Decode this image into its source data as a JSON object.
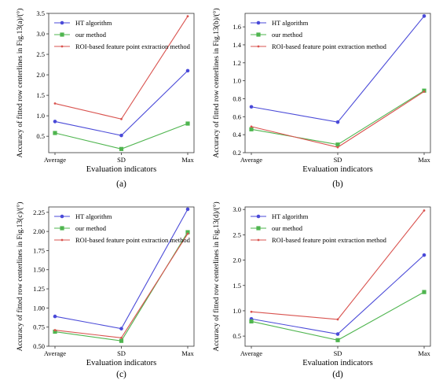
{
  "figure": {
    "panels": [
      {
        "caption": "(a)",
        "ylabel": "Accuracy of fitted row centerlines in Fig.13(a)/(°)",
        "xlabel": "Evaluation indicators"
      },
      {
        "caption": "(b)",
        "ylabel": "Accuracy of fitted row centerlines in Fig.13(b)/(°)",
        "xlabel": "Evaluation indicators"
      },
      {
        "caption": "(c)",
        "ylabel": "Accuracy of fitted row centerlines in Fig.13(c)/(°)",
        "xlabel": "Evaluation indicators"
      },
      {
        "caption": "(d)",
        "ylabel": "Accuracy of fitted row centerlines in Fig.13(d)/(°)",
        "xlabel": "Evaluation indicators"
      }
    ]
  },
  "colors": {
    "ht": "#4a4ad8",
    "ours": "#4fb54f",
    "roi": "#d9534f",
    "axis": "#333333",
    "grid": "#dddddd"
  },
  "chart_data": [
    {
      "type": "line",
      "categories": [
        "Average",
        "SD",
        "Max"
      ],
      "ylim": [
        0.1,
        3.5
      ],
      "yticks": [
        0.5,
        1.0,
        1.5,
        2.0,
        2.5,
        3.0,
        3.5
      ],
      "ytick_labels": [
        "0.5",
        "1.0",
        "1.5",
        "2.0",
        "2.5",
        "3.0",
        "3.5"
      ],
      "grid": false,
      "legend": "top-left",
      "series": [
        {
          "name": "HT algorithm",
          "values": [
            0.86,
            0.52,
            2.1
          ]
        },
        {
          "name": "our method",
          "values": [
            0.58,
            0.19,
            0.81
          ]
        },
        {
          "name": "ROI-based feature point extraction method",
          "values": [
            1.3,
            0.92,
            3.43
          ]
        }
      ]
    },
    {
      "type": "line",
      "categories": [
        "Average",
        "SD",
        "Max"
      ],
      "ylim": [
        0.2,
        1.75
      ],
      "yticks": [
        0.2,
        0.4,
        0.6,
        0.8,
        1.0,
        1.2,
        1.4,
        1.6
      ],
      "ytick_labels": [
        "0.2",
        "0.4",
        "0.6",
        "0.8",
        "1.0",
        "1.2",
        "1.4",
        "1.6"
      ],
      "grid": false,
      "legend": "top-left",
      "series": [
        {
          "name": "HT algorithm",
          "values": [
            0.71,
            0.54,
            1.72
          ]
        },
        {
          "name": "our method",
          "values": [
            0.46,
            0.29,
            0.89
          ]
        },
        {
          "name": "ROI-based feature point extraction method",
          "values": [
            0.49,
            0.26,
            0.88
          ]
        }
      ]
    },
    {
      "type": "line",
      "categories": [
        "Average",
        "SD",
        "Max"
      ],
      "ylim": [
        0.5,
        2.32
      ],
      "yticks": [
        0.5,
        0.75,
        1.0,
        1.25,
        1.5,
        1.75,
        2.0,
        2.25
      ],
      "ytick_labels": [
        "0.50",
        "0.75",
        "1.00",
        "1.25",
        "1.50",
        "1.75",
        "2.00",
        "2.25"
      ],
      "grid": false,
      "legend": "top-left",
      "series": [
        {
          "name": "HT algorithm",
          "values": [
            0.89,
            0.73,
            2.29
          ]
        },
        {
          "name": "our method",
          "values": [
            0.69,
            0.57,
            1.99
          ]
        },
        {
          "name": "ROI-based feature point extraction method",
          "values": [
            0.71,
            0.61,
            1.97
          ]
        }
      ]
    },
    {
      "type": "line",
      "categories": [
        "Average",
        "SD",
        "Max"
      ],
      "ylim": [
        0.3,
        3.05
      ],
      "yticks": [
        0.5,
        1.0,
        1.5,
        2.0,
        2.5,
        3.0
      ],
      "ytick_labels": [
        "0.5",
        "1.0",
        "1.5",
        "2.0",
        "2.5",
        "3.0"
      ],
      "grid": false,
      "legend": "top-left",
      "series": [
        {
          "name": "HT algorithm",
          "values": [
            0.84,
            0.54,
            2.1
          ]
        },
        {
          "name": "our method",
          "values": [
            0.79,
            0.42,
            1.37
          ]
        },
        {
          "name": "ROI-based feature point extraction method",
          "values": [
            0.98,
            0.83,
            2.98
          ]
        }
      ]
    }
  ]
}
